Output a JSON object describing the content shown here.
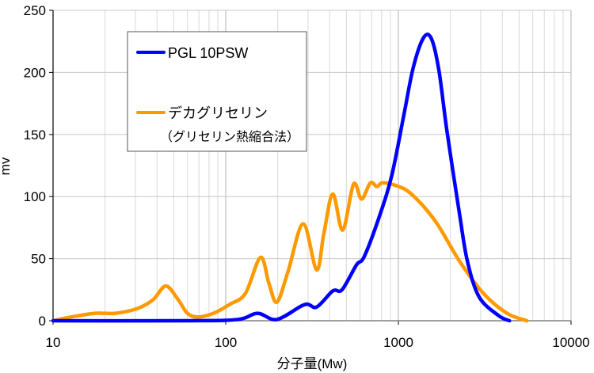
{
  "chart_data": {
    "type": "line",
    "title": "",
    "xlabel": "分子量(Mw)",
    "ylabel": "mv",
    "xscale": "log",
    "xlim": [
      10,
      10000
    ],
    "ylim": [
      0,
      250
    ],
    "xticks": [
      "10",
      "100",
      "1000",
      "10000"
    ],
    "yticks": [
      "0",
      "50",
      "100",
      "150",
      "200",
      "250"
    ],
    "grid": true,
    "legend_position": "top-left",
    "series": [
      {
        "name": "PGL 10PSW",
        "color": "#0000ff",
        "points": [
          [
            10,
            0
          ],
          [
            60,
            0
          ],
          [
            117,
            1
          ],
          [
            153,
            6
          ],
          [
            198,
            1
          ],
          [
            286,
            13
          ],
          [
            336,
            11
          ],
          [
            417,
            24
          ],
          [
            472,
            25
          ],
          [
            572,
            45
          ],
          [
            636,
            52
          ],
          [
            785,
            86
          ],
          [
            919,
            118
          ],
          [
            1077,
            166
          ],
          [
            1220,
            204
          ],
          [
            1400,
            228
          ],
          [
            1555,
            227
          ],
          [
            1720,
            201
          ],
          [
            1910,
            153
          ],
          [
            2260,
            86
          ],
          [
            2510,
            48
          ],
          [
            2940,
            19
          ],
          [
            3820,
            4
          ],
          [
            4400,
            0
          ]
        ]
      },
      {
        "name": "デカグリセリン",
        "name_line2": "（グリセリン熱縮合法）",
        "color": "#ff9900",
        "points": [
          [
            10,
            0
          ],
          [
            12.7,
            3
          ],
          [
            17.5,
            6
          ],
          [
            23,
            6
          ],
          [
            31,
            10
          ],
          [
            38,
            17
          ],
          [
            45,
            28
          ],
          [
            53,
            17
          ],
          [
            60,
            6
          ],
          [
            69,
            3
          ],
          [
            85,
            6
          ],
          [
            105,
            13
          ],
          [
            130,
            22
          ],
          [
            159,
            51
          ],
          [
            178,
            30
          ],
          [
            198,
            15
          ],
          [
            230,
            40
          ],
          [
            281,
            78
          ],
          [
            336,
            41
          ],
          [
            370,
            70
          ],
          [
            417,
            102
          ],
          [
            476,
            73
          ],
          [
            550,
            110
          ],
          [
            612,
            98
          ],
          [
            688,
            111
          ],
          [
            751,
            108
          ],
          [
            807,
            111
          ],
          [
            963,
            109
          ],
          [
            1191,
            102
          ],
          [
            1640,
            80
          ],
          [
            2260,
            48
          ],
          [
            3110,
            22
          ],
          [
            4260,
            6
          ],
          [
            5550,
            0
          ]
        ]
      }
    ]
  }
}
